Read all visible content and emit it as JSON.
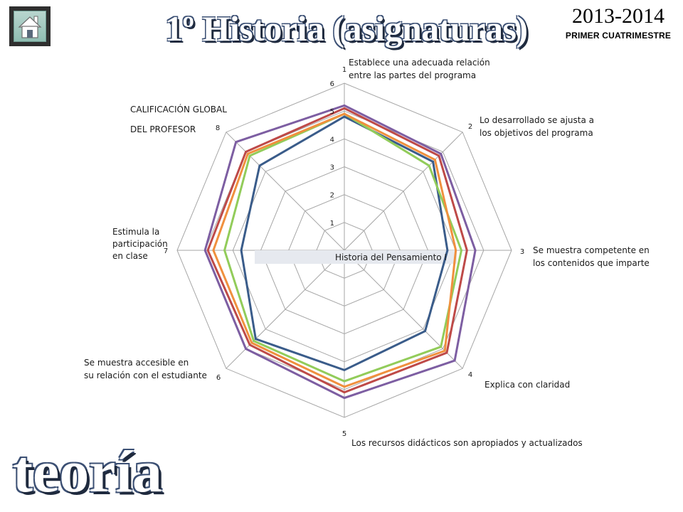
{
  "header": {
    "title": "1º Historia (asignaturas)",
    "year": "2013-2014",
    "term": "PRIMER CUATRIMESTRE"
  },
  "nav": {
    "home_icon": "home-icon"
  },
  "footer": {
    "watermark": "teoría"
  },
  "colors": {
    "grid": "#a6a6a6",
    "title_fill": "#ffffff",
    "title_outline": "#3c5074"
  },
  "chart_data": {
    "type": "radar",
    "axes": [
      {
        "number": "1",
        "label_lines": [
          "Establece una adecuada relación",
          "entre las partes del programa"
        ]
      },
      {
        "number": "2",
        "label_lines": [
          "Lo desarrollado se ajusta a",
          "los objetivos del programa"
        ]
      },
      {
        "number": "3",
        "label_lines": [
          "Se muestra competente en",
          "los contenidos que imparte"
        ]
      },
      {
        "number": "4",
        "label_lines": [
          "Explica con claridad"
        ]
      },
      {
        "number": "5",
        "label_lines": [
          "Los recursos didácticos son apropiados y actualizados"
        ]
      },
      {
        "number": "6",
        "label_lines": [
          "Se muestra accesible en",
          "su relación con el estudiante"
        ]
      },
      {
        "number": "7",
        "label_lines": [
          "Estimula la",
          "participación",
          "en clase"
        ]
      },
      {
        "number": "8",
        "label_lines": [
          "CALIFICACIÓN GLOBAL",
          "DEL PROFESOR"
        ]
      }
    ],
    "r_ticks": [
      "1",
      "2",
      "3",
      "4",
      "5",
      "6"
    ],
    "rlim": [
      0,
      6
    ],
    "legend_label": "Historia del Pensamiento I",
    "grid": true,
    "series": [
      {
        "color": "#3a5c8a",
        "values": [
          4.8,
          4.5,
          3.7,
          4.1,
          4.3,
          4.5,
          3.7,
          4.3
        ]
      },
      {
        "color": "#92cc5a",
        "values": [
          4.9,
          4.3,
          4.2,
          4.9,
          4.7,
          4.6,
          4.3,
          4.8
        ]
      },
      {
        "color": "#f0903e",
        "values": [
          4.9,
          4.6,
          4.0,
          5.1,
          4.9,
          4.7,
          4.7,
          4.9
        ]
      },
      {
        "color": "#be4a48",
        "values": [
          5.1,
          4.8,
          4.4,
          5.2,
          5.1,
          4.8,
          4.9,
          5.0
        ]
      },
      {
        "color": "#7d5ea2",
        "values": [
          5.2,
          4.9,
          4.7,
          5.6,
          5.3,
          5.0,
          5.0,
          5.5
        ]
      }
    ]
  }
}
